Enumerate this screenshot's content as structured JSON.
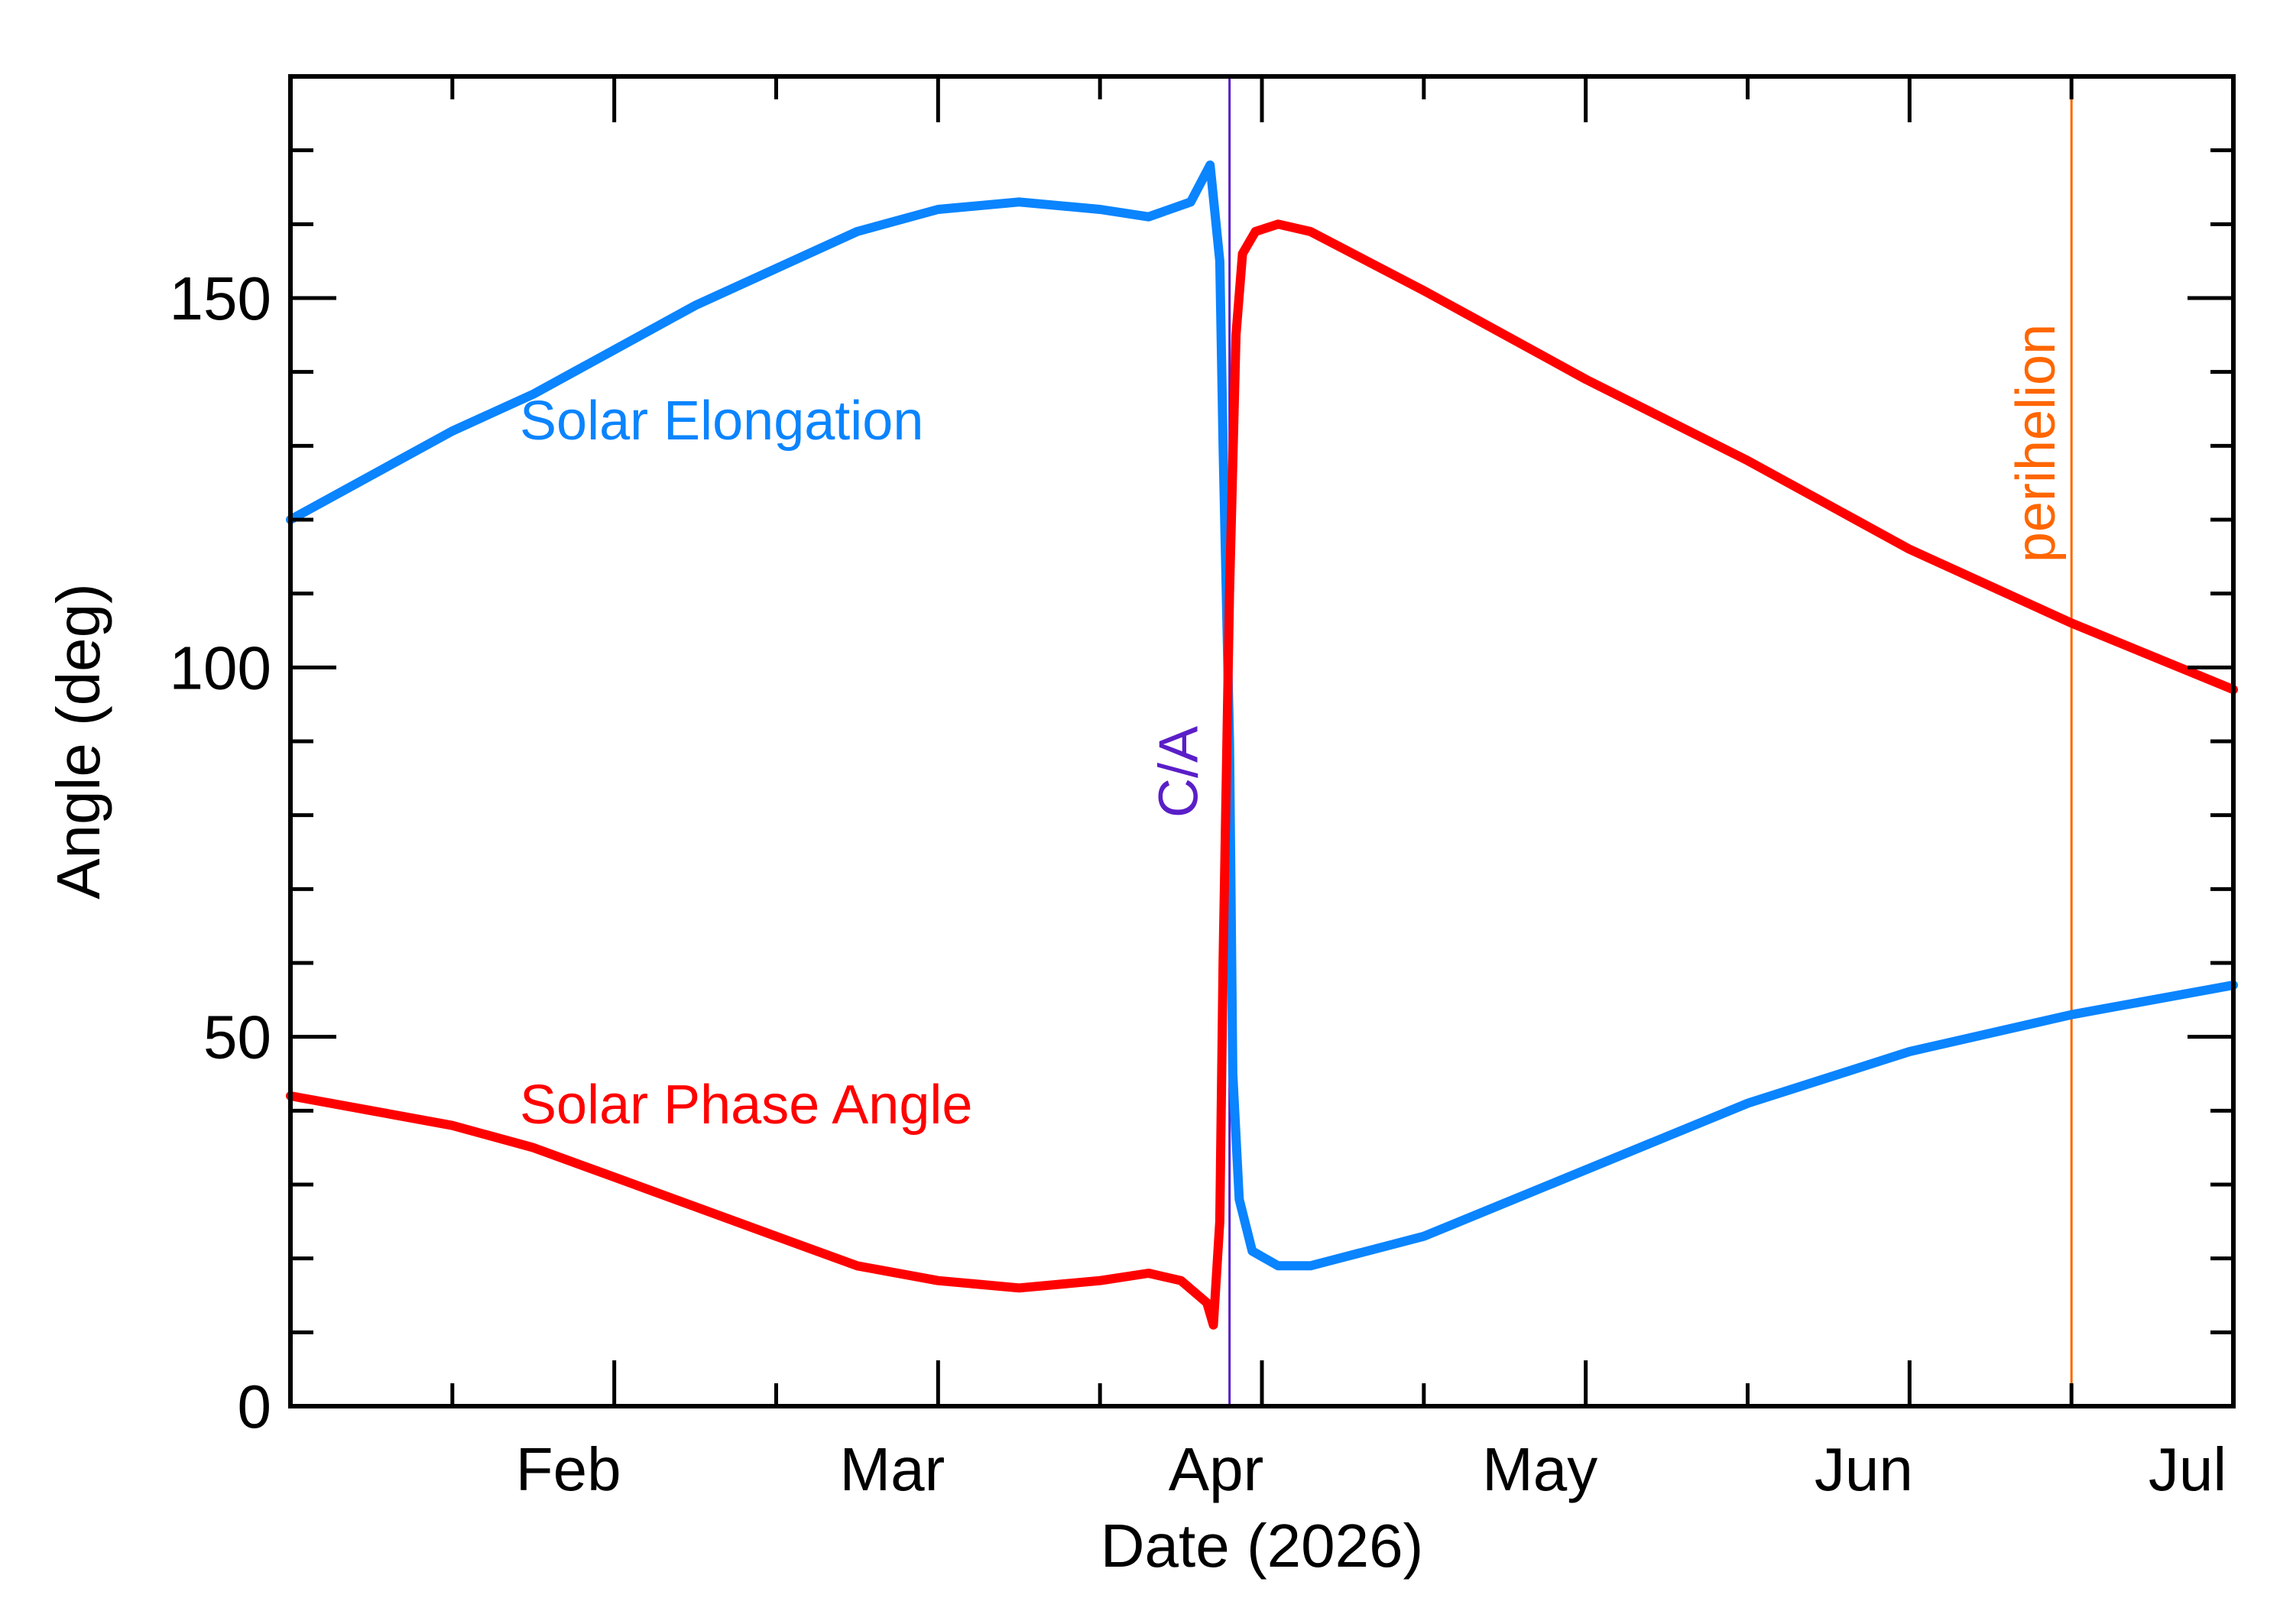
{
  "chart_data": {
    "type": "line",
    "title": "",
    "xlabel": "Date (2026)",
    "ylabel": "Angle (deg)",
    "x_unit": "month",
    "x_range": [
      0.0,
      6.0
    ],
    "ylim": [
      0,
      180
    ],
    "grid": false,
    "x_ticks": [
      {
        "x": 1,
        "label": "Feb"
      },
      {
        "x": 2,
        "label": "Mar"
      },
      {
        "x": 3,
        "label": "Apr"
      },
      {
        "x": 4,
        "label": "May"
      },
      {
        "x": 5,
        "label": "Jun"
      },
      {
        "x": 6,
        "label": "Jul"
      }
    ],
    "y_ticks": [
      0,
      50,
      100,
      150
    ],
    "series": [
      {
        "name": "Solar Elongation",
        "color": "#0a84ff",
        "points": [
          [
            0.0,
            120
          ],
          [
            0.25,
            126
          ],
          [
            0.5,
            132
          ],
          [
            0.75,
            137
          ],
          [
            1.0,
            143
          ],
          [
            1.25,
            149
          ],
          [
            1.5,
            154
          ],
          [
            1.75,
            159
          ],
          [
            2.0,
            162
          ],
          [
            2.25,
            163
          ],
          [
            2.5,
            162
          ],
          [
            2.65,
            161
          ],
          [
            2.78,
            163
          ],
          [
            2.84,
            168
          ],
          [
            2.87,
            155
          ],
          [
            2.88,
            130
          ],
          [
            2.9,
            90
          ],
          [
            2.91,
            45
          ],
          [
            2.93,
            28
          ],
          [
            2.97,
            21
          ],
          [
            3.05,
            19
          ],
          [
            3.15,
            19
          ],
          [
            3.5,
            23
          ],
          [
            4.0,
            32
          ],
          [
            4.5,
            41
          ],
          [
            5.0,
            48
          ],
          [
            5.5,
            53
          ],
          [
            6.0,
            57
          ]
        ]
      },
      {
        "name": "Solar Phase Angle",
        "color": "#ff0000",
        "points": [
          [
            0.0,
            42
          ],
          [
            0.25,
            40
          ],
          [
            0.5,
            38
          ],
          [
            0.75,
            35
          ],
          [
            1.0,
            31
          ],
          [
            1.25,
            27
          ],
          [
            1.5,
            23
          ],
          [
            1.75,
            19
          ],
          [
            2.0,
            17
          ],
          [
            2.25,
            16
          ],
          [
            2.5,
            17
          ],
          [
            2.65,
            18
          ],
          [
            2.75,
            17
          ],
          [
            2.83,
            14
          ],
          [
            2.85,
            11
          ],
          [
            2.87,
            25
          ],
          [
            2.88,
            60
          ],
          [
            2.9,
            110
          ],
          [
            2.92,
            145
          ],
          [
            2.94,
            156
          ],
          [
            2.98,
            159
          ],
          [
            3.05,
            160
          ],
          [
            3.15,
            159
          ],
          [
            3.5,
            151
          ],
          [
            4.0,
            139
          ],
          [
            4.5,
            128
          ],
          [
            5.0,
            116
          ],
          [
            5.5,
            106
          ],
          [
            6.0,
            97
          ]
        ]
      }
    ],
    "markers": [
      {
        "label": "C/A",
        "x": 2.9,
        "color": "#5a1ec8"
      },
      {
        "label": "perihelion",
        "x": 5.5,
        "color": "#ff6600"
      }
    ]
  }
}
